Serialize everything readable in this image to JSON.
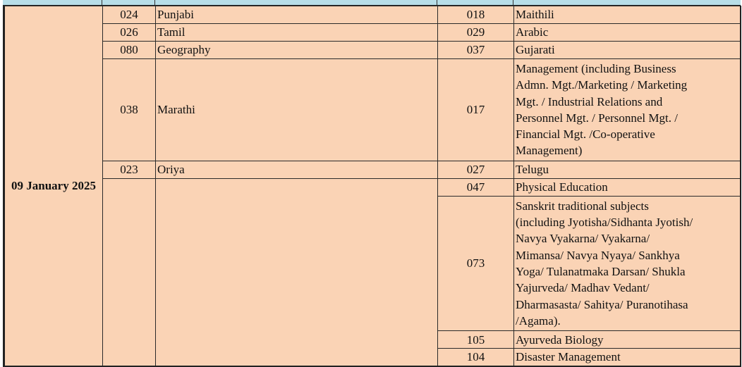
{
  "date": "09 January 2025",
  "left_rows": [
    {
      "code": "024",
      "subject": "Punjabi"
    },
    {
      "code": "026",
      "subject": "Tamil"
    },
    {
      "code": "080",
      "subject": "Geography"
    },
    {
      "code": "038",
      "subject": "Marathi"
    },
    {
      "code": "023",
      "subject": "Oriya"
    }
  ],
  "right_rows": [
    {
      "code": "018",
      "subject": "Maithili"
    },
    {
      "code": "029",
      "subject": "Arabic"
    },
    {
      "code": "037",
      "subject": "Gujarati"
    },
    {
      "code": "017",
      "subject": "Management (including Business\nAdmn. Mgt./Marketing / Marketing\nMgt. / Industrial Relations and\nPersonnel Mgt. / Personnel Mgt. /\nFinancial Mgt. /Co-operative\nManagement)"
    },
    {
      "code": "027",
      "subject": "Telugu"
    },
    {
      "code": "047",
      "subject": "Physical Education"
    },
    {
      "code": "073",
      "subject": "Sanskrit traditional subjects\n(including Jyotisha/Sidhanta Jyotish/\nNavya Vyakarna/ Vyakarna/\nMimansa/ Navya Nyaya/ Sankhya\nYoga/ Tulanatmaka Darsan/ Shukla\nYajurveda/ Madhav Vedant/\nDharmasasta/ Sahitya/ Puranotihasa\n/Agama)."
    },
    {
      "code": "105",
      "subject": "Ayurveda Biology"
    },
    {
      "code": "104",
      "subject": "Disaster Management"
    }
  ],
  "colors": {
    "cell_bg": "#FAD3B5",
    "header_bg": "#B7DEE8"
  }
}
